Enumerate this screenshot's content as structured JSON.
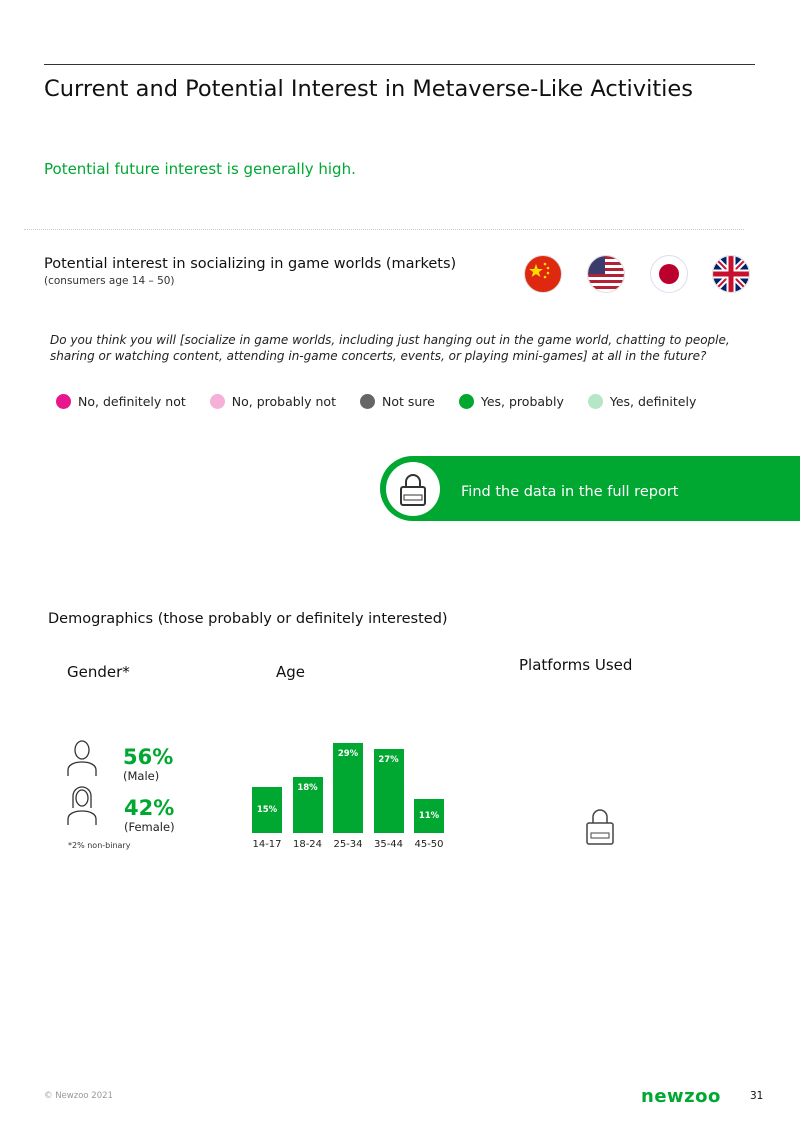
{
  "header": {
    "title": "Current and Potential Interest in Metaverse-Like Activities",
    "subtitle": "Potential future interest is generally high."
  },
  "section": {
    "title": "Potential interest in socializing in game worlds (markets)",
    "note": "(consumers age 14 – 50)",
    "flags": [
      "china-flag-icon",
      "usa-flag-icon",
      "japan-flag-icon",
      "uk-flag-icon"
    ],
    "question": "Do you think you will [socialize in game worlds, including just hanging out in the game world, chatting to people, sharing or watching content, attending in-game concerts, events, or playing mini-games] at all in the future?",
    "legend": [
      {
        "label": "No, definitely not",
        "color": "#e8158c"
      },
      {
        "label": "No, probably not",
        "color": "#f5b0d8"
      },
      {
        "label": "Not sure",
        "color": "#666666"
      },
      {
        "label": "Yes, probably",
        "color": "#00a832"
      },
      {
        "label": "Yes, definitely",
        "color": "#b5e6c5"
      }
    ]
  },
  "cta": {
    "label": "Find the data in the full report"
  },
  "demographics": {
    "title": "Demographics (those probably or definitely interested)",
    "gender": {
      "title": "Gender*",
      "male_pct": "56%",
      "male_label": "(Male)",
      "female_pct": "42%",
      "female_label": "(Female)",
      "note": "*2% non-binary"
    },
    "platforms": {
      "title": "Platforms Used"
    }
  },
  "chart_data": {
    "type": "bar",
    "title": "Age",
    "categories": [
      "14-17",
      "18-24",
      "25-34",
      "35-44",
      "45-50"
    ],
    "values": [
      15,
      18,
      29,
      27,
      11
    ],
    "labels": [
      "15%",
      "18%",
      "29%",
      "27%",
      "11%"
    ],
    "color": "#00a832"
  },
  "footer": {
    "copyright": "© Newzoo 2021",
    "logo": "newzoo",
    "page": "31"
  }
}
